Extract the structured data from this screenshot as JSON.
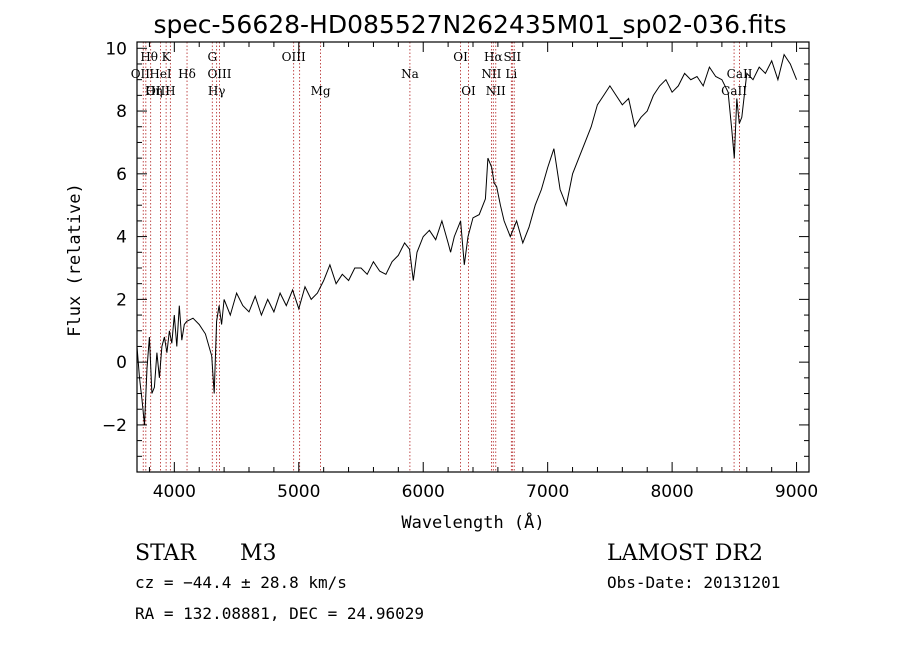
{
  "chart_data": {
    "type": "line",
    "title": "spec-56628-HD085527N262435M01_sp02-036.fits",
    "xlabel": "Wavelength (Å)",
    "ylabel": "Flux (relative)",
    "xlim": [
      3700,
      9100
    ],
    "ylim": [
      -3.5,
      10.2
    ],
    "xticks": [
      4000,
      5000,
      6000,
      7000,
      8000,
      9000
    ],
    "xtick_labels": [
      "4000",
      "5000",
      "6000",
      "7000",
      "8000",
      "9000"
    ],
    "yticks": [
      -2,
      0,
      2,
      4,
      6,
      8,
      10
    ],
    "ytick_labels": [
      "−2",
      "0",
      "2",
      "4",
      "6",
      "8",
      "10"
    ],
    "grid": false,
    "series": [
      {
        "x": [
          3700,
          3720,
          3740,
          3760,
          3780,
          3800,
          3820,
          3840,
          3860,
          3880,
          3900,
          3920,
          3940,
          3960,
          3980,
          4000,
          4020,
          4040,
          4060,
          4080,
          4100,
          4150,
          4200,
          4250,
          4300,
          4320,
          4340,
          4360,
          4380,
          4400,
          4450,
          4500,
          4550,
          4600,
          4650,
          4700,
          4750,
          4800,
          4850,
          4900,
          4950,
          5000,
          5050,
          5100,
          5150,
          5200,
          5250,
          5300,
          5350,
          5400,
          5450,
          5500,
          5550,
          5600,
          5650,
          5700,
          5750,
          5800,
          5850,
          5890,
          5920,
          5950,
          6000,
          6050,
          6100,
          6150,
          6200,
          6220,
          6250,
          6300,
          6330,
          6360,
          6400,
          6450,
          6500,
          6520,
          6550,
          6570,
          6590,
          6620,
          6650,
          6700,
          6750,
          6800,
          6850,
          6900,
          6950,
          7000,
          7050,
          7100,
          7150,
          7200,
          7250,
          7300,
          7350,
          7400,
          7450,
          7500,
          7550,
          7600,
          7650,
          7700,
          7750,
          7800,
          7850,
          7900,
          7950,
          8000,
          8050,
          8100,
          8150,
          8200,
          8250,
          8300,
          8350,
          8400,
          8450,
          8480,
          8500,
          8520,
          8540,
          8560,
          8600,
          8650,
          8700,
          8750,
          8800,
          8850,
          8900,
          8950,
          9000
        ],
        "y": [
          0.5,
          -0.5,
          -1.2,
          -2.0,
          -0.2,
          0.8,
          -1.0,
          -0.8,
          0.3,
          -0.5,
          0.5,
          0.8,
          0.3,
          1.0,
          0.6,
          1.5,
          0.5,
          1.8,
          0.7,
          1.2,
          1.3,
          1.4,
          1.2,
          0.9,
          0.2,
          -1.0,
          1.3,
          1.8,
          1.2,
          2.0,
          1.5,
          2.2,
          1.8,
          1.6,
          2.1,
          1.5,
          2.0,
          1.6,
          2.2,
          1.8,
          2.3,
          1.7,
          2.4,
          2.0,
          2.2,
          2.6,
          3.1,
          2.5,
          2.8,
          2.6,
          3.0,
          3.0,
          2.8,
          3.2,
          2.9,
          2.8,
          3.2,
          3.4,
          3.8,
          3.6,
          2.6,
          3.5,
          4.0,
          4.2,
          3.9,
          4.5,
          3.8,
          3.5,
          4.0,
          4.5,
          3.1,
          4.0,
          4.6,
          4.7,
          5.2,
          6.5,
          6.2,
          5.7,
          5.6,
          5.0,
          4.5,
          4.0,
          4.5,
          3.8,
          4.3,
          5.0,
          5.5,
          6.2,
          6.8,
          5.5,
          5.0,
          6.0,
          6.5,
          7.0,
          7.5,
          8.2,
          8.5,
          8.8,
          8.5,
          8.2,
          8.4,
          7.5,
          7.8,
          8.0,
          8.5,
          8.8,
          9.0,
          8.6,
          8.8,
          9.2,
          9.0,
          9.1,
          8.8,
          9.4,
          9.1,
          9.0,
          8.6,
          7.4,
          6.5,
          8.4,
          7.6,
          7.8,
          9.2,
          9.0,
          9.4,
          9.2,
          9.6,
          9.0,
          9.8,
          9.5,
          9.0
        ]
      }
    ],
    "line_markers": [
      {
        "label": "Hθ",
        "wave": 3798,
        "row": 1
      },
      {
        "label": "OII",
        "wave": 3727,
        "row": 2
      },
      {
        "label": "OIII",
        "wave": 3869,
        "row": 3
      },
      {
        "label": "K",
        "wave": 3934,
        "row": 1
      },
      {
        "label": "HeI",
        "wave": 3889,
        "row": 2
      },
      {
        "label": "Hη",
        "wave": 3835,
        "row": 3
      },
      {
        "label": "H",
        "wave": 3968,
        "row": 3
      },
      {
        "label": "Hδ",
        "wave": 4102,
        "row": 2
      },
      {
        "label": "G",
        "wave": 4305,
        "row": 1
      },
      {
        "label": "OIII",
        "wave": 4363,
        "row": 2
      },
      {
        "label": "Hγ",
        "wave": 4340,
        "row": 3
      },
      {
        "label": "OIII",
        "wave": 4959,
        "row": 1
      },
      {
        "label": "Mg",
        "wave": 5175,
        "row": 3
      },
      {
        "label": "Na",
        "wave": 5893,
        "row": 2
      },
      {
        "label": "OI",
        "wave": 6300,
        "row": 1
      },
      {
        "label": "OI",
        "wave": 6364,
        "row": 3
      },
      {
        "label": "Hα",
        "wave": 6563,
        "row": 1
      },
      {
        "label": "SII",
        "wave": 6716,
        "row": 1
      },
      {
        "label": "NII",
        "wave": 6548,
        "row": 2
      },
      {
        "label": "Li",
        "wave": 6708,
        "row": 2
      },
      {
        "label": "NII",
        "wave": 6583,
        "row": 3
      },
      {
        "label": "CaII",
        "wave": 8542,
        "row": 2
      },
      {
        "label": "CaII",
        "wave": 8498,
        "row": 3
      }
    ],
    "extra_marker_lines": [
      3750,
      3771,
      3810,
      3889,
      3934,
      3968,
      4102,
      4305,
      4340,
      4363,
      4959,
      5007,
      5175,
      5893,
      6300,
      6364,
      6548,
      6563,
      6583,
      6708,
      6716,
      6731,
      8498,
      8542
    ]
  },
  "info": {
    "class_label": "STAR",
    "subclass": "M3",
    "survey": "LAMOST DR2",
    "cz": "cz = −44.4 ± 28.8 km/s",
    "obs_date": "Obs-Date: 20131201",
    "coords": "RA = 132.08881, DEC =  24.96029"
  },
  "colors": {
    "axis": "#000000",
    "spectrum": "#000000",
    "marker_line": "#b22222"
  }
}
